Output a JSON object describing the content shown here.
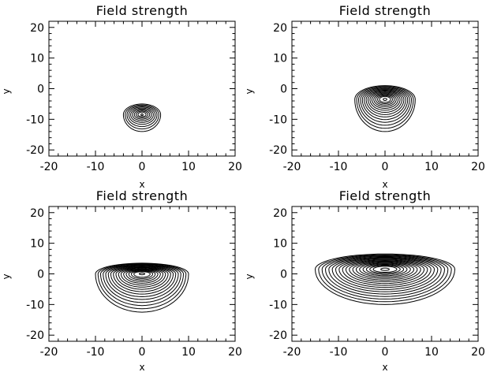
{
  "chart_data": [
    {
      "type": "contour",
      "title": "Field strength",
      "xlabel": "x",
      "ylabel": "y",
      "xlim": [
        -20,
        20
      ],
      "ylim": [
        -22,
        22
      ],
      "xticks": [
        "-20",
        "-10",
        "0",
        "10",
        "20"
      ],
      "yticks": [
        "-20",
        "-10",
        "0",
        "10",
        "20"
      ],
      "grid": false,
      "structure": {
        "x_center": 0,
        "y_center": -9.5,
        "x_halfwidth": 4.0,
        "y_top": -5,
        "y_bottom": -14,
        "core_y": -8.5,
        "nlevels": 9
      }
    },
    {
      "type": "contour",
      "title": "Field strength",
      "xlabel": "x",
      "ylabel": "y",
      "xlim": [
        -20,
        20
      ],
      "ylim": [
        -22,
        22
      ],
      "xticks": [
        "-20",
        "-10",
        "0",
        "10",
        "20"
      ],
      "yticks": [
        "-20",
        "-10",
        "0",
        "10",
        "20"
      ],
      "grid": false,
      "structure": {
        "x_center": 0,
        "y_center": -5,
        "x_halfwidth": 6.5,
        "y_top": 1,
        "y_bottom": -14,
        "core_y": -3.5,
        "nlevels": 14
      }
    },
    {
      "type": "contour",
      "title": "Field strength",
      "xlabel": "x",
      "ylabel": "y",
      "xlim": [
        -20,
        20
      ],
      "ylim": [
        -22,
        22
      ],
      "xticks": [
        "-20",
        "-10",
        "0",
        "10",
        "20"
      ],
      "yticks": [
        "-20",
        "-10",
        "0",
        "10",
        "20"
      ],
      "grid": false,
      "structure": {
        "x_center": 0,
        "y_center": -1.5,
        "x_halfwidth": 10,
        "y_top": 3.5,
        "y_bottom": -12.5,
        "core_y": 0,
        "nlevels": 16
      }
    },
    {
      "type": "contour",
      "title": "Field strength",
      "xlabel": "x",
      "ylabel": "y",
      "xlim": [
        -20,
        20
      ],
      "ylim": [
        -22,
        22
      ],
      "xticks": [
        "-20",
        "-10",
        "0",
        "10",
        "20"
      ],
      "yticks": [
        "-20",
        "-10",
        "0",
        "10",
        "20"
      ],
      "grid": false,
      "structure": {
        "x_center": 0,
        "y_center": 0,
        "x_halfwidth": 15,
        "y_top": 6.5,
        "y_bottom": -10,
        "core_y": 1.5,
        "nlevels": 18
      }
    }
  ]
}
